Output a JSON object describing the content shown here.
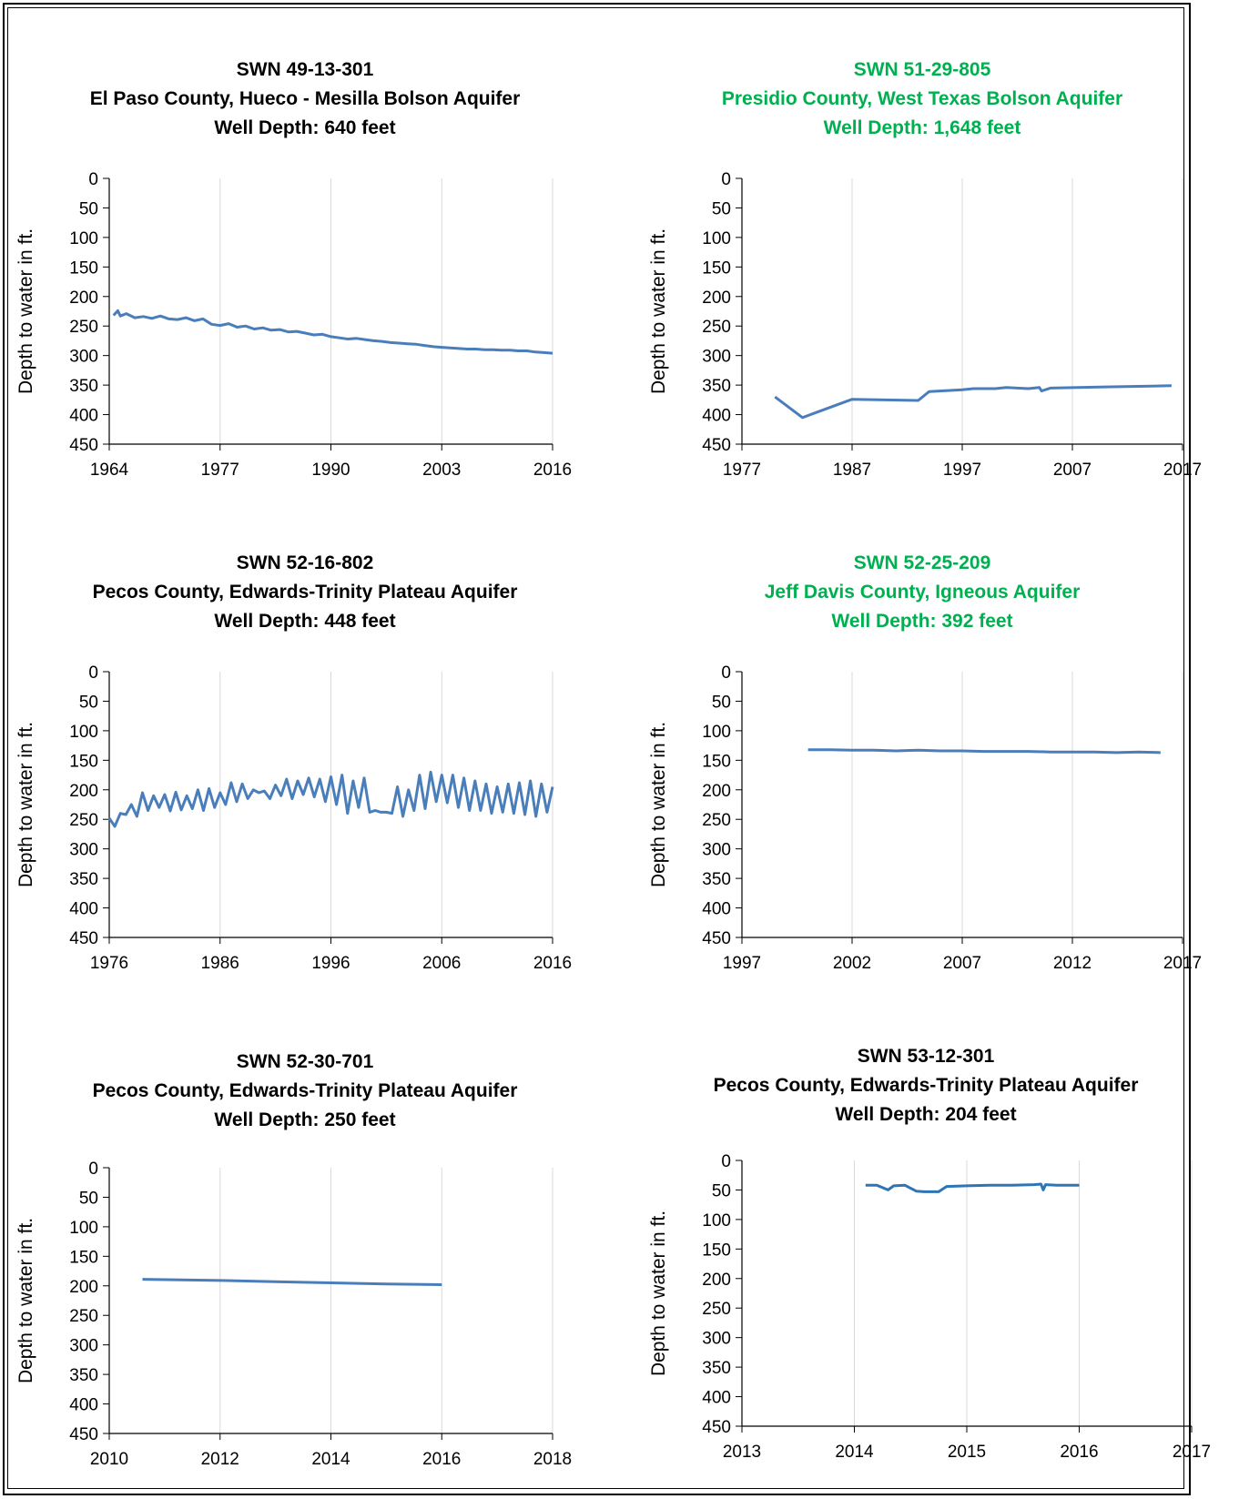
{
  "colors": {
    "series": "#4a7ebb",
    "series_alt": "#2e75b6",
    "title_black": "#000000",
    "title_green": "#00b050",
    "grid": "#d9d9d9",
    "axis": "#000000"
  },
  "chart_data": [
    {
      "type": "line",
      "title": [
        "SWN 49-13-301",
        "El Paso County, Hueco - Mesilla Bolson Aquifer",
        "Well Depth: 640 feet"
      ],
      "title_color": "black",
      "xlabel": "",
      "ylabel": "Depth to water in ft.",
      "xlim": [
        1964,
        2016
      ],
      "xticks": [
        "1964",
        "1977",
        "1990",
        "2003",
        "2016"
      ],
      "ylim": [
        0,
        450
      ],
      "yticks": [
        "0",
        "50",
        "100",
        "150",
        "200",
        "250",
        "300",
        "350",
        "400",
        "450"
      ],
      "y_inverted": true,
      "grid": true,
      "series": [
        {
          "x": [
            1964.5,
            1965,
            1965.3,
            1966,
            1967,
            1968,
            1969,
            1970,
            1971,
            1972,
            1973,
            1974,
            1975,
            1976,
            1977,
            1978,
            1979,
            1980,
            1981,
            1982,
            1983,
            1984,
            1985,
            1986,
            1987,
            1988,
            1989,
            1990,
            1991,
            1992,
            1993,
            1994,
            1995,
            1996,
            1997,
            1998,
            1999,
            2000,
            2001,
            2002,
            2003,
            2004,
            2005,
            2006,
            2007,
            2008,
            2009,
            2010,
            2011,
            2012,
            2013,
            2014,
            2015,
            2016
          ],
          "values": [
            232,
            224,
            233,
            229,
            236,
            234,
            237,
            233,
            238,
            239,
            236,
            241,
            238,
            247,
            249,
            246,
            252,
            250,
            255,
            253,
            257,
            256,
            260,
            259,
            262,
            265,
            264,
            268,
            270,
            272,
            271,
            273,
            275,
            276,
            278,
            279,
            280,
            281,
            283,
            285,
            286,
            287,
            288,
            289,
            289,
            290,
            290,
            291,
            291,
            292,
            292,
            294,
            295,
            296
          ]
        }
      ]
    },
    {
      "type": "line",
      "title": [
        "SWN 51-29-805",
        "Presidio County, West Texas Bolson Aquifer",
        "Well Depth: 1,648 feet"
      ],
      "title_color": "green",
      "xlabel": "",
      "ylabel": "Depth to water in ft.",
      "xlim": [
        1977,
        2017
      ],
      "xticks": [
        "1977",
        "1987",
        "1997",
        "2007",
        "2017"
      ],
      "ylim": [
        0,
        450
      ],
      "yticks": [
        "0",
        "50",
        "100",
        "150",
        "200",
        "250",
        "300",
        "350",
        "400",
        "450"
      ],
      "y_inverted": true,
      "grid": true,
      "series": [
        {
          "x": [
            1980,
            1982.5,
            1987,
            1993,
            1994,
            1997,
            1998,
            2000,
            2001,
            2003,
            2004,
            2004.2,
            2005,
            2010,
            2016
          ],
          "values": [
            370,
            405,
            374,
            376,
            361,
            358,
            356,
            356,
            354,
            356,
            354,
            360,
            355,
            353,
            351
          ]
        }
      ]
    },
    {
      "type": "line",
      "title": [
        "SWN 52-16-802",
        "Pecos County, Edwards-Trinity Plateau Aquifer",
        "Well Depth: 448 feet"
      ],
      "title_color": "black",
      "xlabel": "",
      "ylabel": "Depth to water in ft.",
      "xlim": [
        1976,
        2016
      ],
      "xticks": [
        "1976",
        "1986",
        "1996",
        "2006",
        "2016"
      ],
      "ylim": [
        0,
        450
      ],
      "yticks": [
        "0",
        "50",
        "100",
        "150",
        "200",
        "250",
        "300",
        "350",
        "400",
        "450"
      ],
      "y_inverted": true,
      "grid": true,
      "series": [
        {
          "x": [
            1976,
            1976.5,
            1977,
            1977.5,
            1978,
            1978.5,
            1979,
            1979.5,
            1980,
            1980.5,
            1981,
            1981.5,
            1982,
            1982.5,
            1983,
            1983.5,
            1984,
            1984.5,
            1985,
            1985.5,
            1986,
            1986.5,
            1987,
            1987.5,
            1988,
            1988.5,
            1989,
            1989.5,
            1990,
            1990.5,
            1991,
            1991.5,
            1992,
            1992.5,
            1993,
            1993.5,
            1994,
            1994.5,
            1995,
            1995.5,
            1996,
            1996.5,
            1997,
            1997.5,
            1998,
            1998.5,
            1999,
            1999.5,
            2000,
            2000.5,
            2001,
            2001.5,
            2002,
            2002.5,
            2003,
            2003.5,
            2004,
            2004.5,
            2005,
            2005.5,
            2006,
            2006.5,
            2007,
            2007.5,
            2008,
            2008.5,
            2009,
            2009.5,
            2010,
            2010.5,
            2011,
            2011.5,
            2012,
            2012.5,
            2013,
            2013.5,
            2014,
            2014.5,
            2015,
            2015.5,
            2016
          ],
          "values": [
            248,
            262,
            240,
            242,
            225,
            245,
            205,
            235,
            210,
            230,
            208,
            236,
            204,
            234,
            210,
            232,
            200,
            235,
            198,
            230,
            205,
            225,
            188,
            220,
            190,
            215,
            200,
            205,
            202,
            215,
            192,
            210,
            182,
            215,
            185,
            208,
            180,
            212,
            182,
            220,
            178,
            225,
            175,
            240,
            185,
            230,
            180,
            238,
            235,
            238,
            238,
            240,
            195,
            245,
            200,
            235,
            175,
            232,
            170,
            220,
            175,
            222,
            175,
            230,
            180,
            235,
            185,
            235,
            190,
            240,
            195,
            238,
            190,
            240,
            188,
            242,
            185,
            245,
            190,
            238,
            195
          ]
        }
      ]
    },
    {
      "type": "line",
      "title": [
        "SWN 52-25-209",
        "Jeff Davis County, Igneous Aquifer",
        "Well Depth: 392 feet"
      ],
      "title_color": "green",
      "xlabel": "",
      "ylabel": "Depth to water in ft.",
      "xlim": [
        1997,
        2017
      ],
      "xticks": [
        "1997",
        "2002",
        "2007",
        "2012",
        "2017"
      ],
      "ylim": [
        0,
        450
      ],
      "yticks": [
        "0",
        "50",
        "100",
        "150",
        "200",
        "250",
        "300",
        "350",
        "400",
        "450"
      ],
      "y_inverted": true,
      "grid": true,
      "series": [
        {
          "x": [
            2000,
            2001,
            2002,
            2003,
            2004,
            2005,
            2006,
            2007,
            2008,
            2009,
            2010,
            2011,
            2012,
            2013,
            2014,
            2015,
            2016
          ],
          "values": [
            132,
            132,
            133,
            133,
            134,
            133,
            134,
            134,
            135,
            135,
            135,
            136,
            136,
            136,
            137,
            136,
            137
          ]
        }
      ]
    },
    {
      "type": "line",
      "title": [
        "SWN 52-30-701",
        "Pecos County, Edwards-Trinity Plateau Aquifer",
        "Well Depth: 250 feet"
      ],
      "title_color": "black",
      "xlabel": "",
      "ylabel": "Depth to water in ft.",
      "xlim": [
        2010,
        2018
      ],
      "xticks": [
        "2010",
        "2012",
        "2014",
        "2016",
        "2018"
      ],
      "ylim": [
        0,
        450
      ],
      "yticks": [
        "0",
        "50",
        "100",
        "150",
        "200",
        "250",
        "300",
        "350",
        "400",
        "450"
      ],
      "y_inverted": true,
      "grid": true,
      "series": [
        {
          "x": [
            2010.6,
            2012,
            2013,
            2014,
            2015,
            2016
          ],
          "values": [
            189,
            191,
            193,
            195,
            197,
            198
          ]
        }
      ]
    },
    {
      "type": "line",
      "title": [
        "SWN 53-12-301",
        "Pecos County, Edwards-Trinity Plateau Aquifer",
        "Well Depth: 204 feet"
      ],
      "title_color": "black",
      "xlabel": "",
      "ylabel": "Depth to water in ft.",
      "xlim": [
        2013,
        2017
      ],
      "xticks": [
        "2013",
        "2014",
        "2015",
        "2016",
        "2017"
      ],
      "ylim": [
        0,
        450
      ],
      "yticks": [
        "0",
        "50",
        "100",
        "150",
        "200",
        "250",
        "300",
        "350",
        "400",
        "450"
      ],
      "y_inverted": true,
      "grid": true,
      "series": [
        {
          "x": [
            2014.1,
            2014.2,
            2014.3,
            2014.35,
            2014.45,
            2014.55,
            2014.62,
            2014.75,
            2014.82,
            2015,
            2015.2,
            2015.4,
            2015.6,
            2015.66,
            2015.68,
            2015.7,
            2015.8,
            2016
          ],
          "values": [
            42,
            42,
            50,
            43,
            42,
            52,
            53,
            53,
            44,
            43,
            42,
            42,
            41,
            40,
            50,
            41,
            42,
            42
          ]
        }
      ]
    }
  ]
}
